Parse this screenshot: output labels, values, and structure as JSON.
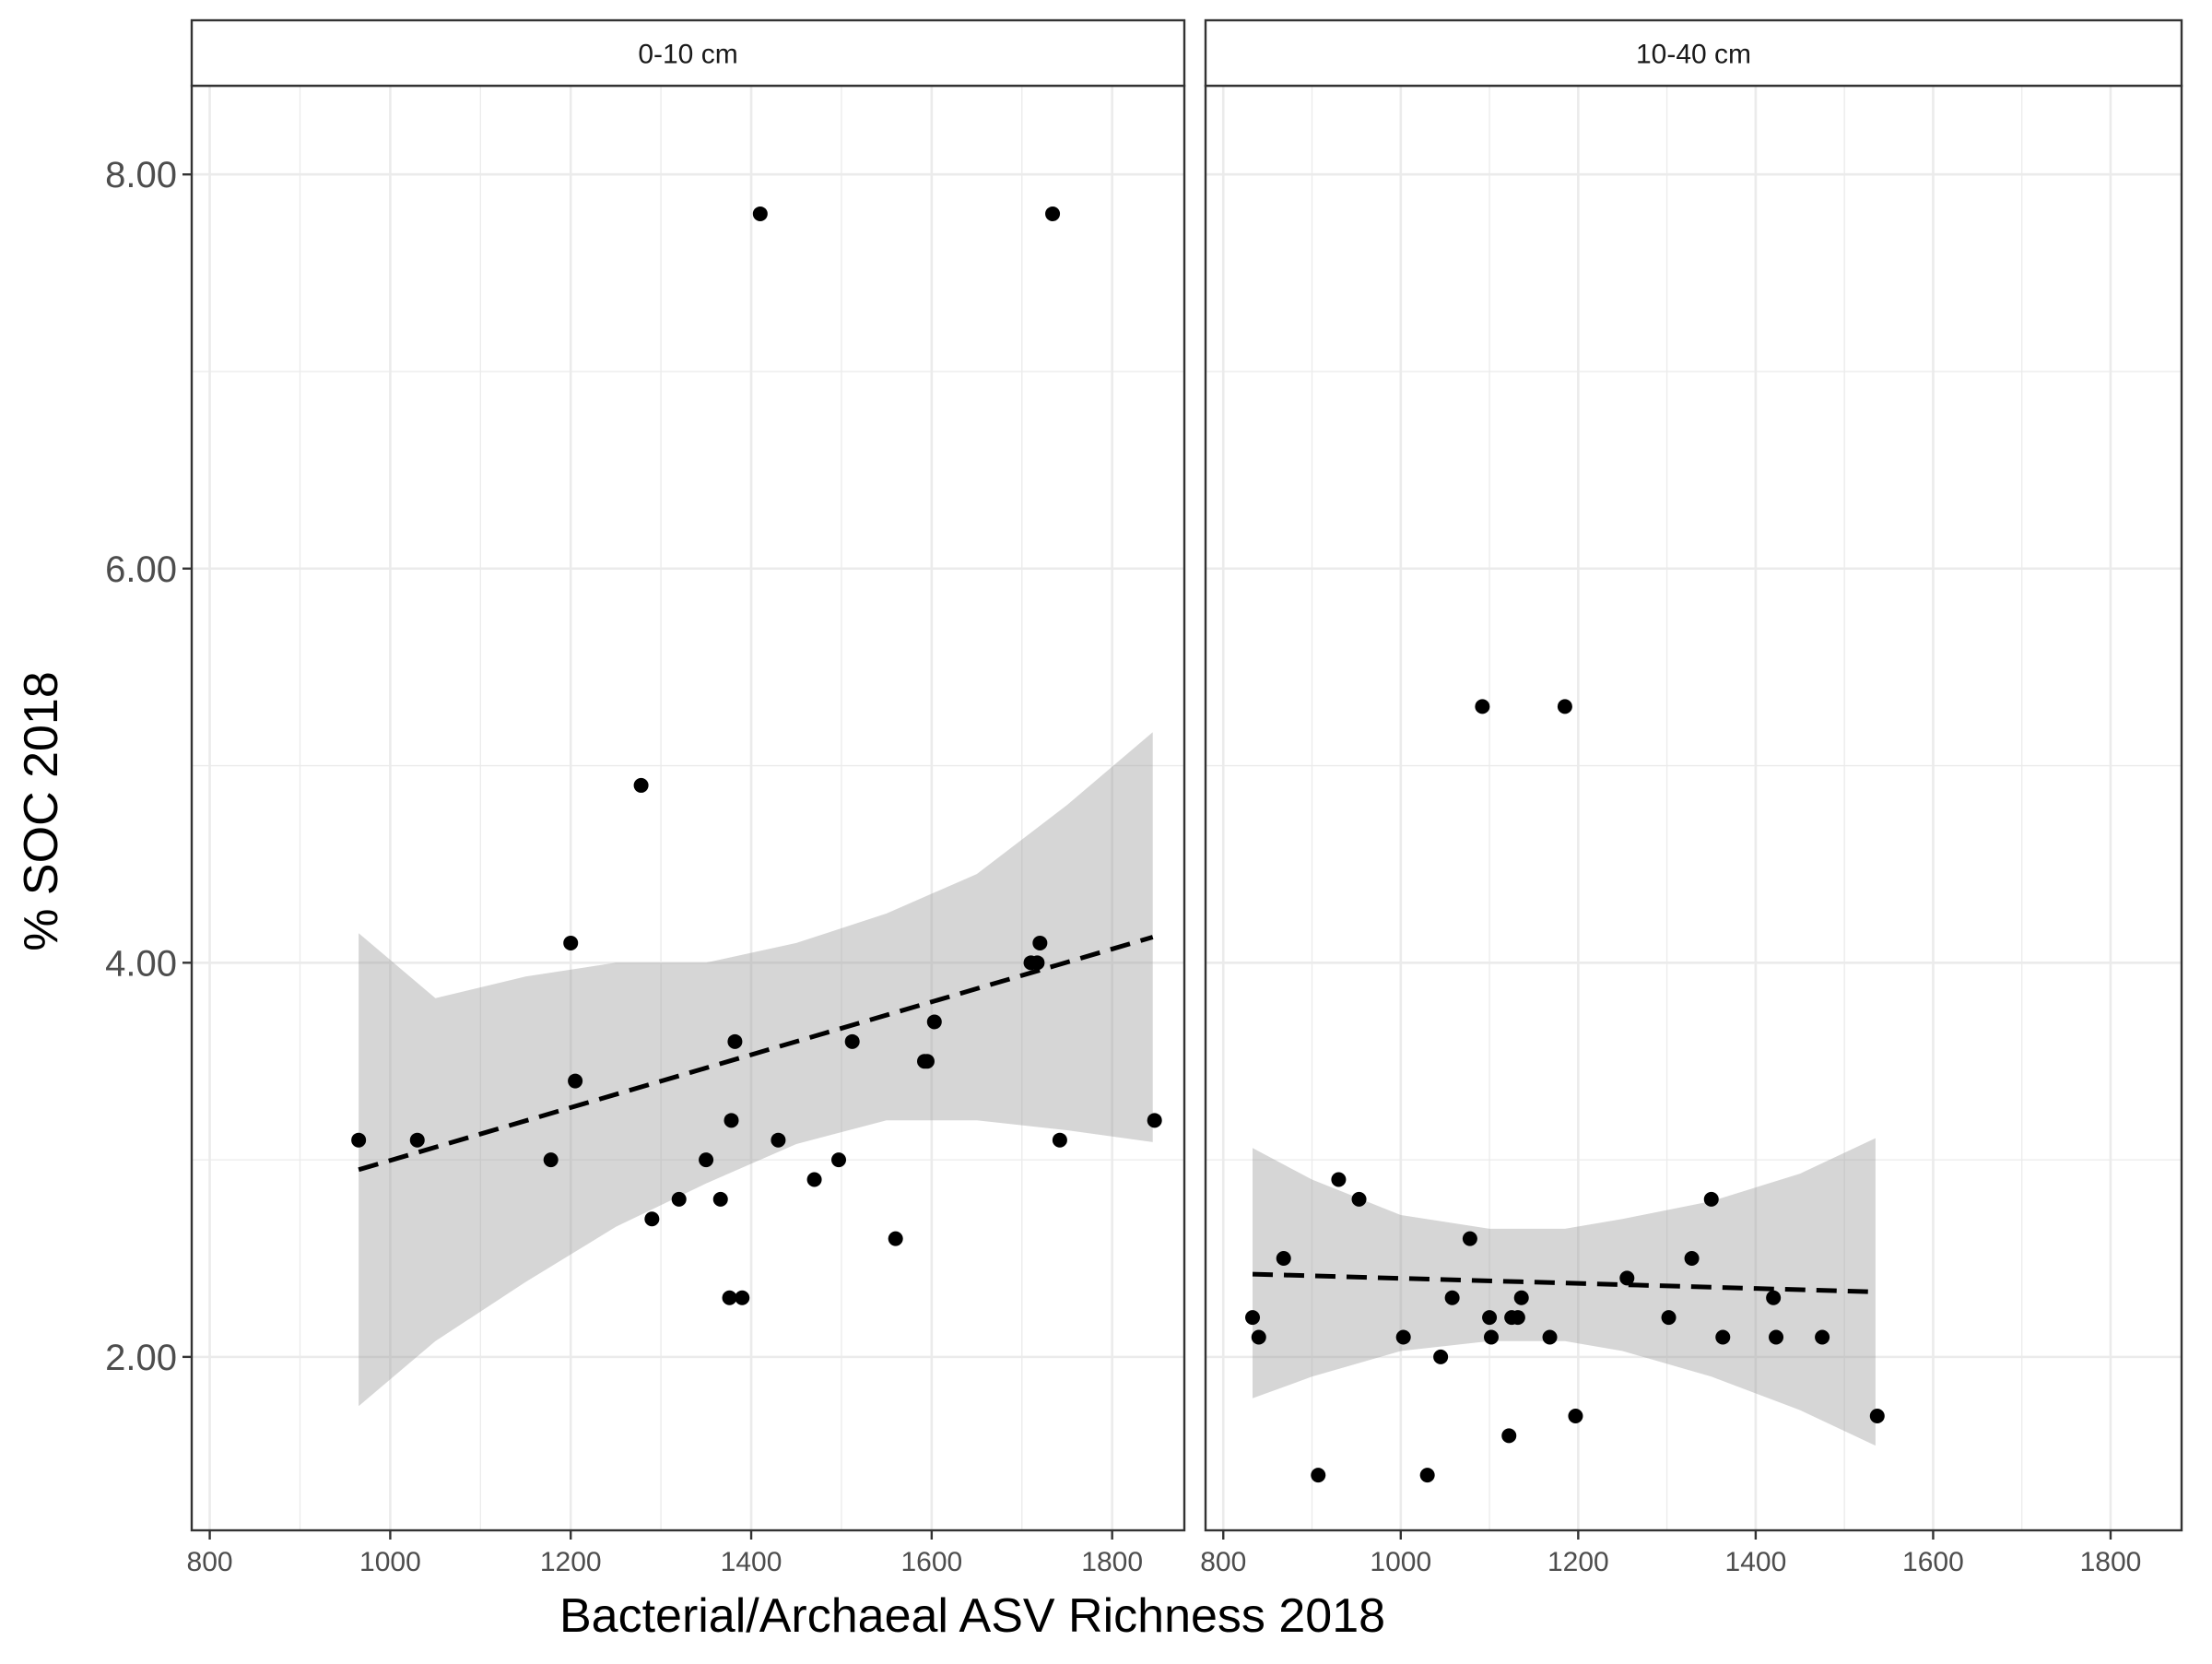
{
  "chart_data": {
    "type": "scatter",
    "xlabel": "Bacterial/Archaeal ASV Richness 2018",
    "ylabel": "% SOC 2018",
    "xlim": [
      780,
      1880
    ],
    "ylim": [
      1.12,
      8.45
    ],
    "x_ticks": [
      800,
      1000,
      1200,
      1400,
      1600,
      1800
    ],
    "y_ticks": [
      2.0,
      4.0,
      6.0,
      8.0
    ],
    "y_tick_labels": [
      "2.00",
      "4.00",
      "6.00",
      "8.00"
    ],
    "grid": true,
    "facets": [
      {
        "label": "0-10 cm",
        "points": [
          {
            "x": 965,
            "y": 3.1
          },
          {
            "x": 1030,
            "y": 3.1
          },
          {
            "x": 1178,
            "y": 3.0
          },
          {
            "x": 1200,
            "y": 4.1
          },
          {
            "x": 1205,
            "y": 3.4
          },
          {
            "x": 1278,
            "y": 4.9
          },
          {
            "x": 1290,
            "y": 2.7
          },
          {
            "x": 1320,
            "y": 2.8
          },
          {
            "x": 1350,
            "y": 3.0
          },
          {
            "x": 1366,
            "y": 2.8
          },
          {
            "x": 1376,
            "y": 2.3
          },
          {
            "x": 1378,
            "y": 3.2
          },
          {
            "x": 1382,
            "y": 3.6
          },
          {
            "x": 1390,
            "y": 2.3
          },
          {
            "x": 1410,
            "y": 7.8
          },
          {
            "x": 1430,
            "y": 3.1
          },
          {
            "x": 1470,
            "y": 2.9
          },
          {
            "x": 1497,
            "y": 3.0
          },
          {
            "x": 1512,
            "y": 3.6
          },
          {
            "x": 1560,
            "y": 2.6
          },
          {
            "x": 1592,
            "y": 3.5
          },
          {
            "x": 1595,
            "y": 3.5
          },
          {
            "x": 1603,
            "y": 3.7
          },
          {
            "x": 1710,
            "y": 4.0
          },
          {
            "x": 1717,
            "y": 4.0
          },
          {
            "x": 1720,
            "y": 4.1
          },
          {
            "x": 1734,
            "y": 7.8
          },
          {
            "x": 1742,
            "y": 3.1
          },
          {
            "x": 1847,
            "y": 3.2
          }
        ],
        "trend": {
          "x": [
            965,
            1845
          ],
          "y": [
            2.95,
            4.13
          ]
        },
        "ci_band": {
          "x": [
            965,
            1050,
            1150,
            1250,
            1350,
            1450,
            1550,
            1650,
            1750,
            1845
          ],
          "lower": [
            1.75,
            2.08,
            2.38,
            2.66,
            2.88,
            3.08,
            3.2,
            3.2,
            3.15,
            3.09
          ],
          "upper": [
            4.15,
            3.82,
            3.93,
            4.0,
            4.0,
            4.1,
            4.25,
            4.45,
            4.8,
            5.17
          ]
        }
      },
      {
        "label": "10-40 cm",
        "points": [
          {
            "x": 833,
            "y": 2.2
          },
          {
            "x": 840,
            "y": 2.1
          },
          {
            "x": 868,
            "y": 2.5
          },
          {
            "x": 907,
            "y": 1.4
          },
          {
            "x": 930,
            "y": 2.9
          },
          {
            "x": 953,
            "y": 2.8
          },
          {
            "x": 1003,
            "y": 2.1
          },
          {
            "x": 1030,
            "y": 1.4
          },
          {
            "x": 1045,
            "y": 2.0
          },
          {
            "x": 1058,
            "y": 2.3
          },
          {
            "x": 1078,
            "y": 2.6
          },
          {
            "x": 1092,
            "y": 5.3
          },
          {
            "x": 1100,
            "y": 2.2
          },
          {
            "x": 1102,
            "y": 2.1
          },
          {
            "x": 1122,
            "y": 1.6
          },
          {
            "x": 1125,
            "y": 2.2
          },
          {
            "x": 1132,
            "y": 2.2
          },
          {
            "x": 1136,
            "y": 2.3
          },
          {
            "x": 1168,
            "y": 2.1
          },
          {
            "x": 1185,
            "y": 5.3
          },
          {
            "x": 1197,
            "y": 1.7
          },
          {
            "x": 1255,
            "y": 2.4
          },
          {
            "x": 1302,
            "y": 2.2
          },
          {
            "x": 1328,
            "y": 2.5
          },
          {
            "x": 1350,
            "y": 2.8
          },
          {
            "x": 1363,
            "y": 2.1
          },
          {
            "x": 1420,
            "y": 2.3
          },
          {
            "x": 1423,
            "y": 2.1
          },
          {
            "x": 1475,
            "y": 2.1
          },
          {
            "x": 1537,
            "y": 1.7
          }
        ],
        "trend": {
          "x": [
            833,
            1535
          ],
          "y": [
            2.42,
            2.33
          ]
        },
        "ci_band": {
          "x": [
            833,
            900,
            1000,
            1100,
            1185,
            1250,
            1350,
            1450,
            1535
          ],
          "lower": [
            1.79,
            1.9,
            2.03,
            2.08,
            2.08,
            2.03,
            1.9,
            1.73,
            1.55
          ],
          "upper": [
            3.06,
            2.9,
            2.72,
            2.65,
            2.65,
            2.7,
            2.79,
            2.93,
            3.11
          ]
        }
      }
    ]
  },
  "colors": {
    "points": "#000000",
    "ribbon": "#999999",
    "grid": "#ebebeb",
    "border": "#333333"
  }
}
